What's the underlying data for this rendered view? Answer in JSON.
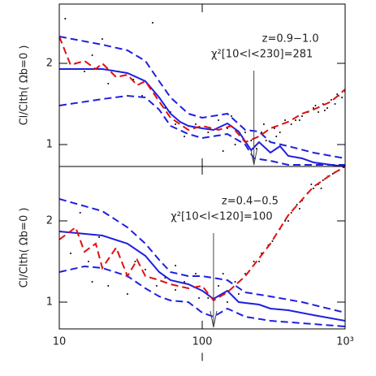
{
  "chart_data": [
    {
      "type": "line",
      "ylabel": "Cl/Clth( Ωb=0 )",
      "xlog": true,
      "xlim": [
        10,
        1000
      ],
      "ylim": [
        0.73,
        2.73
      ],
      "yticks": [
        1,
        2
      ],
      "annotation": {
        "lines": [
          "z=0.9−1.0",
          "χ²[10<l<230]=281"
        ],
        "arrow_x": 230
      },
      "series": [
        {
          "style": "dots",
          "color": "#000000",
          "x": [
            11,
            13,
            15,
            17,
            22,
            26,
            33,
            38,
            45,
            55,
            65,
            75,
            90,
            110,
            130,
            150,
            170,
            190,
            220,
            240,
            260,
            280,
            320,
            350,
            380,
            420,
            450,
            500,
            550,
            600,
            650,
            700,
            750,
            800,
            850,
            900,
            950,
            1000,
            270,
            330,
            480,
            620,
            720,
            880,
            140,
            160,
            200,
            45,
            20,
            60
          ],
          "values": [
            2.55,
            2.0,
            1.9,
            2.1,
            1.75,
            1.9,
            1.8,
            1.6,
            1.5,
            1.45,
            1.25,
            1.1,
            1.25,
            1.15,
            1.3,
            1.2,
            1.0,
            1.1,
            1.05,
            0.95,
            1.15,
            1.05,
            1.2,
            1.15,
            1.3,
            1.25,
            1.3,
            1.35,
            1.4,
            1.45,
            1.4,
            1.5,
            1.45,
            1.55,
            1.5,
            1.6,
            1.58,
            1.65,
            1.25,
            1.1,
            1.3,
            1.48,
            1.42,
            1.62,
            0.92,
            1.35,
            1.15,
            2.5,
            2.3,
            1.4
          ]
        },
        {
          "style": "solid",
          "color": "#1f1fe0",
          "x": [
            10,
            20,
            30,
            40,
            50,
            60,
            70,
            80,
            100,
            120,
            150,
            180,
            220,
            250,
            300,
            350,
            400,
            500,
            600,
            800,
            1000
          ],
          "values": [
            1.93,
            1.93,
            1.88,
            1.78,
            1.58,
            1.38,
            1.28,
            1.23,
            1.2,
            1.18,
            1.26,
            1.16,
            0.93,
            1.03,
            0.9,
            0.98,
            0.86,
            0.83,
            0.78,
            0.75,
            0.73
          ]
        },
        {
          "style": "dashed",
          "color": "#1f1fe0",
          "x": [
            10,
            20,
            30,
            40,
            50,
            60,
            80,
            100,
            150,
            200,
            250,
            300,
            400,
            600,
            1000
          ],
          "values": [
            2.33,
            2.23,
            2.16,
            2.03,
            1.78,
            1.58,
            1.38,
            1.33,
            1.38,
            1.18,
            1.16,
            1.03,
            0.98,
            0.9,
            0.83
          ]
        },
        {
          "style": "dashed",
          "color": "#1f1fe0",
          "x": [
            10,
            20,
            30,
            40,
            50,
            60,
            80,
            100,
            150,
            200,
            230,
            300,
            400,
            1000
          ],
          "values": [
            1.48,
            1.56,
            1.6,
            1.58,
            1.43,
            1.23,
            1.13,
            1.08,
            1.13,
            1.0,
            0.83,
            0.8,
            0.75,
            0.75
          ]
        },
        {
          "style": "dashed",
          "color": "#e01010",
          "x": [
            10,
            12,
            15,
            18,
            20,
            25,
            30,
            35,
            40,
            50,
            60,
            80,
            100,
            130,
            160,
            200,
            250,
            300,
            400,
            500,
            600,
            800,
            1000
          ],
          "values": [
            2.33,
            1.98,
            2.03,
            1.93,
            2.0,
            1.83,
            1.86,
            1.73,
            1.78,
            1.53,
            1.33,
            1.18,
            1.23,
            1.18,
            1.23,
            1.03,
            1.1,
            1.2,
            1.28,
            1.38,
            1.43,
            1.53,
            1.68
          ]
        }
      ]
    },
    {
      "type": "line",
      "ylabel": "Cl/Clth( Ωb=0 )",
      "xlabel": "l",
      "xlog": true,
      "xlim": [
        10,
        1000
      ],
      "ylim": [
        0.67,
        2.67
      ],
      "yticks": [
        1,
        2
      ],
      "xticks": [
        10,
        100,
        {
          "value": 1000,
          "label": "10³"
        }
      ],
      "annotation": {
        "lines": [
          "z=0.4−0.5",
          "χ²[10<l<120]=100"
        ],
        "arrow_x": 120
      },
      "series": [
        {
          "style": "dots",
          "color": "#000000",
          "x": [
            12,
            14,
            16,
            19,
            22,
            26,
            30,
            34,
            40,
            48,
            55,
            65,
            75,
            90,
            110,
            130,
            150,
            170,
            200,
            230,
            260,
            290,
            320,
            350,
            380,
            420,
            460,
            500,
            550,
            600,
            650,
            700,
            760,
            820,
            900,
            970,
            250,
            310,
            400,
            480,
            580,
            680,
            850,
            180,
            140,
            95,
            17,
            65
          ],
          "values": [
            1.6,
            2.1,
            1.5,
            1.8,
            1.2,
            1.6,
            1.1,
            1.5,
            1.4,
            1.2,
            1.3,
            1.15,
            1.25,
            1.35,
            1.05,
            1.2,
            1.0,
            1.25,
            1.35,
            1.5,
            1.6,
            1.7,
            1.8,
            1.9,
            2.0,
            2.1,
            2.2,
            2.25,
            2.35,
            2.4,
            2.45,
            2.5,
            2.55,
            2.58,
            2.62,
            2.66,
            1.5,
            1.75,
            2.0,
            2.15,
            2.45,
            2.4,
            2.6,
            1.1,
            1.35,
            1.05,
            1.25,
            1.45
          ]
        },
        {
          "style": "solid",
          "color": "#1f1fe0",
          "x": [
            10,
            20,
            30,
            40,
            50,
            60,
            80,
            100,
            120,
            150,
            180,
            250,
            300,
            400,
            600,
            1000
          ],
          "values": [
            1.87,
            1.82,
            1.72,
            1.57,
            1.37,
            1.27,
            1.22,
            1.14,
            1.04,
            1.14,
            1.0,
            0.97,
            0.92,
            0.9,
            0.84,
            0.77
          ]
        },
        {
          "style": "dashed",
          "color": "#1f1fe0",
          "x": [
            10,
            20,
            30,
            40,
            50,
            60,
            80,
            100,
            150,
            200,
            300,
            500,
            1000
          ],
          "values": [
            2.27,
            2.12,
            1.92,
            1.72,
            1.52,
            1.37,
            1.32,
            1.32,
            1.27,
            1.12,
            1.07,
            1.0,
            0.87
          ]
        },
        {
          "style": "dashed",
          "color": "#1f1fe0",
          "x": [
            10,
            15,
            20,
            30,
            40,
            50,
            60,
            80,
            100,
            120,
            150,
            200,
            300,
            500,
            1000
          ],
          "values": [
            1.37,
            1.44,
            1.42,
            1.32,
            1.17,
            1.07,
            1.02,
            1.0,
            0.87,
            0.82,
            0.92,
            0.82,
            0.77,
            0.74,
            0.7
          ]
        },
        {
          "style": "dashed",
          "color": "#e01010",
          "x": [
            10,
            13,
            15,
            18,
            20,
            25,
            30,
            35,
            40,
            50,
            60,
            80,
            100,
            120,
            150,
            200,
            300,
            400,
            600,
            800,
            1000
          ],
          "values": [
            1.77,
            1.92,
            1.62,
            1.72,
            1.42,
            1.67,
            1.32,
            1.52,
            1.32,
            1.27,
            1.22,
            1.17,
            1.2,
            1.02,
            1.12,
            1.32,
            1.72,
            2.07,
            2.42,
            2.57,
            2.67
          ]
        }
      ]
    }
  ]
}
